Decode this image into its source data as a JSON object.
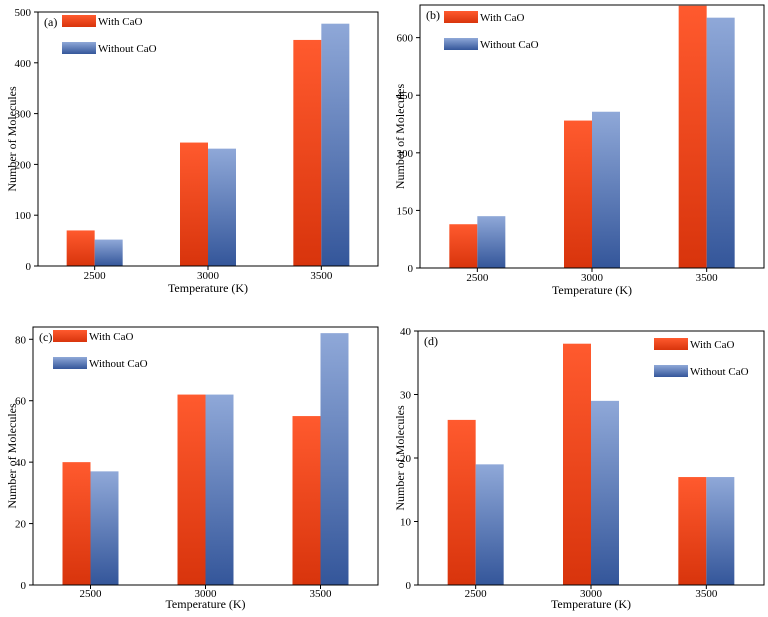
{
  "colors": {
    "with_top": "#ff5a2e",
    "with_bottom": "#d8340c",
    "without_top": "#8fa8d8",
    "without_bottom": "#34569a"
  },
  "chart_data": [
    {
      "type": "bar",
      "panel": "(a)",
      "categories": [
        "2500",
        "3000",
        "3500"
      ],
      "series": [
        {
          "name": "With CaO",
          "values": [
            70,
            243,
            445
          ]
        },
        {
          "name": "Without CaO",
          "values": [
            52,
            231,
            477
          ]
        }
      ],
      "xlabel": "Temperature (K)",
      "ylabel": "Number of Molecules",
      "ylim": [
        0,
        500
      ],
      "yticks": [
        0,
        100,
        200,
        300,
        400,
        500
      ],
      "legend": "top-left"
    },
    {
      "type": "bar",
      "panel": "(b)",
      "categories": [
        "2500",
        "3000",
        "3500"
      ],
      "series": [
        {
          "name": "With CaO",
          "values": [
            114,
            384,
            683
          ]
        },
        {
          "name": "Without CaO",
          "values": [
            135,
            407,
            652
          ]
        }
      ],
      "xlabel": "Temperature (K)",
      "ylabel": "Number of Molecules",
      "ylim": [
        0,
        685
      ],
      "yticks": [
        0,
        150,
        300,
        450,
        600
      ],
      "legend": "top-left"
    },
    {
      "type": "bar",
      "panel": "(c)",
      "categories": [
        "2500",
        "3000",
        "3500"
      ],
      "series": [
        {
          "name": "With CaO",
          "values": [
            40,
            62,
            55
          ]
        },
        {
          "name": "Without CaO",
          "values": [
            37,
            62,
            82
          ]
        }
      ],
      "xlabel": "Temperature (K)",
      "ylabel": "Number of Molecules",
      "ylim": [
        0,
        84
      ],
      "yticks": [
        0,
        20,
        40,
        60,
        80
      ],
      "legend": "top-left"
    },
    {
      "type": "bar",
      "panel": "(d)",
      "categories": [
        "2500",
        "3000",
        "3500"
      ],
      "series": [
        {
          "name": "With CaO",
          "values": [
            26,
            38,
            17
          ]
        },
        {
          "name": "Without CaO",
          "values": [
            19,
            29,
            17
          ]
        }
      ],
      "xlabel": "Temperature (K)",
      "ylabel": "Number of Molecules",
      "ylim": [
        0,
        40
      ],
      "yticks": [
        0,
        10,
        20,
        30,
        40
      ],
      "legend": "top-right"
    }
  ]
}
